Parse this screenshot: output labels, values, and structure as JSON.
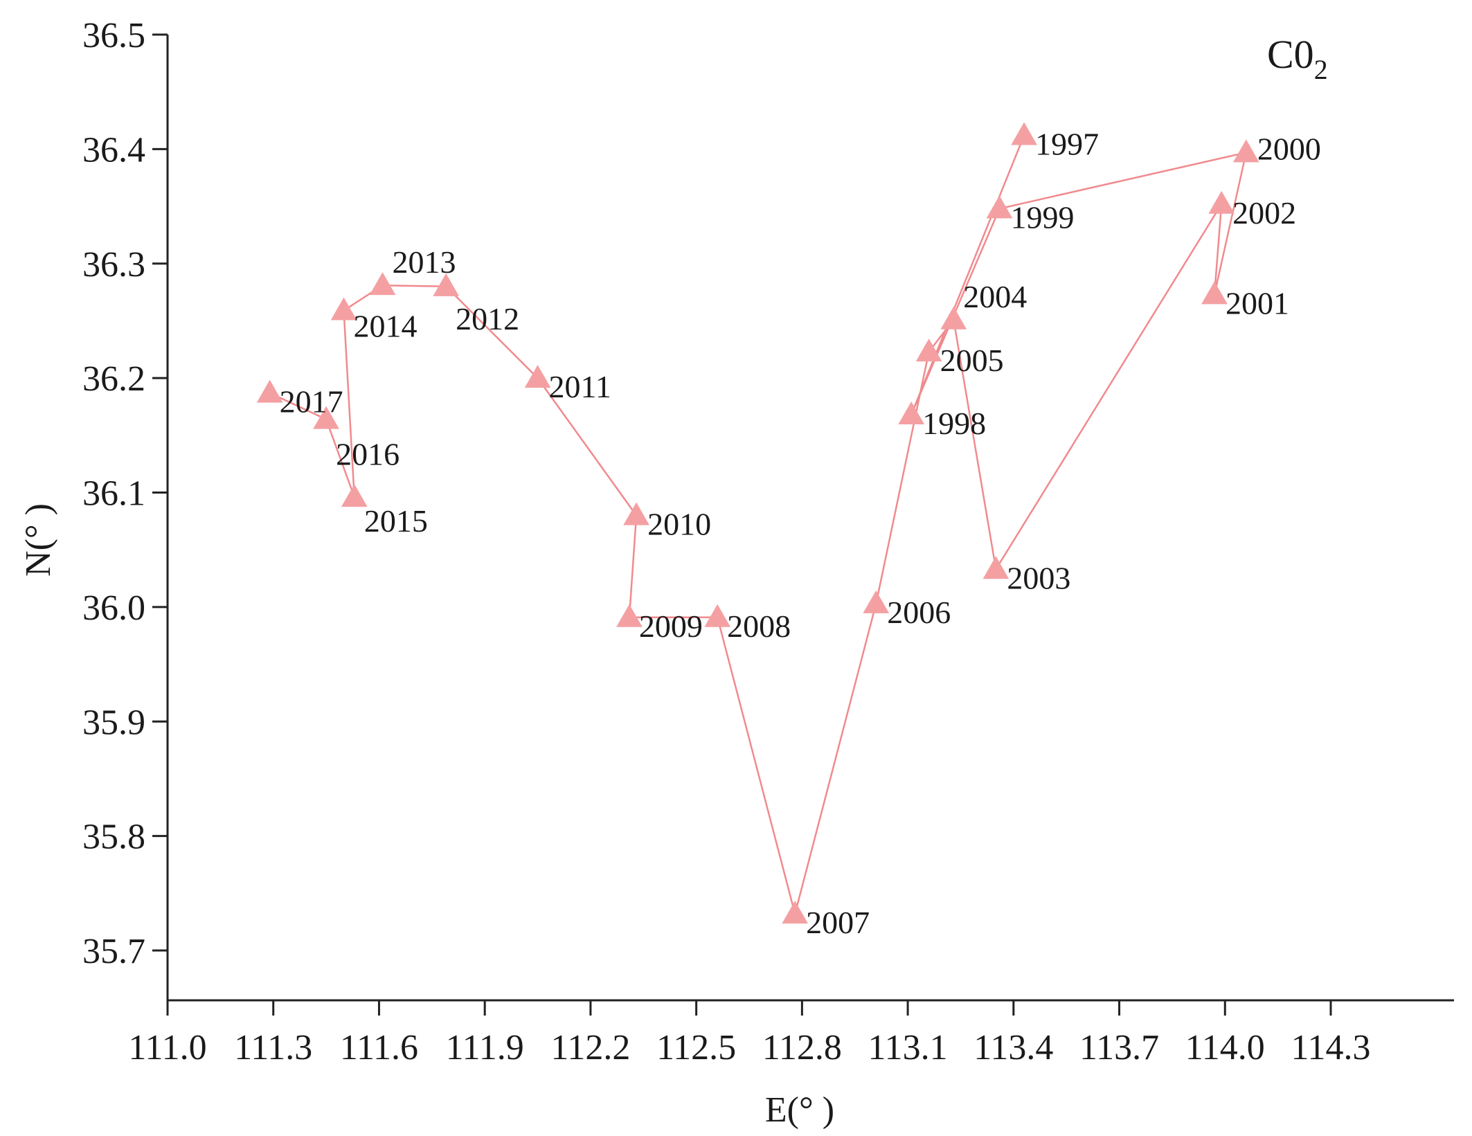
{
  "chart_data": {
    "type": "scatter",
    "panel_label": "C0",
    "panel_label_sub": "2",
    "xlabel": "E(° )",
    "ylabel": "N(° )",
    "xlim": [
      111.0,
      114.6
    ],
    "ylim": [
      35.65,
      36.5
    ],
    "xticks": [
      111.0,
      111.3,
      111.6,
      111.9,
      112.2,
      112.5,
      112.8,
      113.1,
      113.4,
      113.7,
      114.0,
      114.3
    ],
    "xtick_labels": [
      "111.0",
      "111.3",
      "111.6",
      "111.9",
      "112.2",
      "112.5",
      "112.8",
      "113.1",
      "113.4",
      "113.7",
      "114.0",
      "114.3"
    ],
    "yticks": [
      35.7,
      35.8,
      35.9,
      36.0,
      36.1,
      36.2,
      36.3,
      36.4,
      36.5
    ],
    "ytick_labels": [
      "35.7",
      "35.8",
      "35.9",
      "36.0",
      "36.1",
      "36.2",
      "36.3",
      "36.4",
      "36.5"
    ],
    "marker": "triangle",
    "color": "#f4a0a3",
    "line_color": "#f08a8e",
    "grid": false,
    "series": [
      {
        "points": [
          {
            "label": "1997",
            "x": 113.43,
            "y": 36.412
          },
          {
            "label": "1998",
            "x": 113.11,
            "y": 36.168
          },
          {
            "label": "1999",
            "x": 113.36,
            "y": 36.348
          },
          {
            "label": "2000",
            "x": 114.06,
            "y": 36.397
          },
          {
            "label": "2001",
            "x": 113.97,
            "y": 36.273
          },
          {
            "label": "2002",
            "x": 113.99,
            "y": 36.352
          },
          {
            "label": "2003",
            "x": 113.35,
            "y": 36.033
          },
          {
            "label": "2004",
            "x": 113.23,
            "y": 36.251
          },
          {
            "label": "2005",
            "x": 113.16,
            "y": 36.223
          },
          {
            "label": "2006",
            "x": 113.01,
            "y": 36.003
          },
          {
            "label": "2007",
            "x": 112.78,
            "y": 35.732
          },
          {
            "label": "2008",
            "x": 112.56,
            "y": 35.991
          },
          {
            "label": "2009",
            "x": 112.31,
            "y": 35.991
          },
          {
            "label": "2010",
            "x": 112.33,
            "y": 36.08
          },
          {
            "label": "2011",
            "x": 112.05,
            "y": 36.2
          },
          {
            "label": "2012",
            "x": 111.79,
            "y": 36.28
          },
          {
            "label": "2013",
            "x": 111.61,
            "y": 36.281
          },
          {
            "label": "2014",
            "x": 111.5,
            "y": 36.259
          },
          {
            "label": "2015",
            "x": 111.53,
            "y": 36.096
          },
          {
            "label": "2016",
            "x": 111.45,
            "y": 36.164
          },
          {
            "label": "2017",
            "x": 111.29,
            "y": 36.187
          }
        ]
      }
    ]
  }
}
